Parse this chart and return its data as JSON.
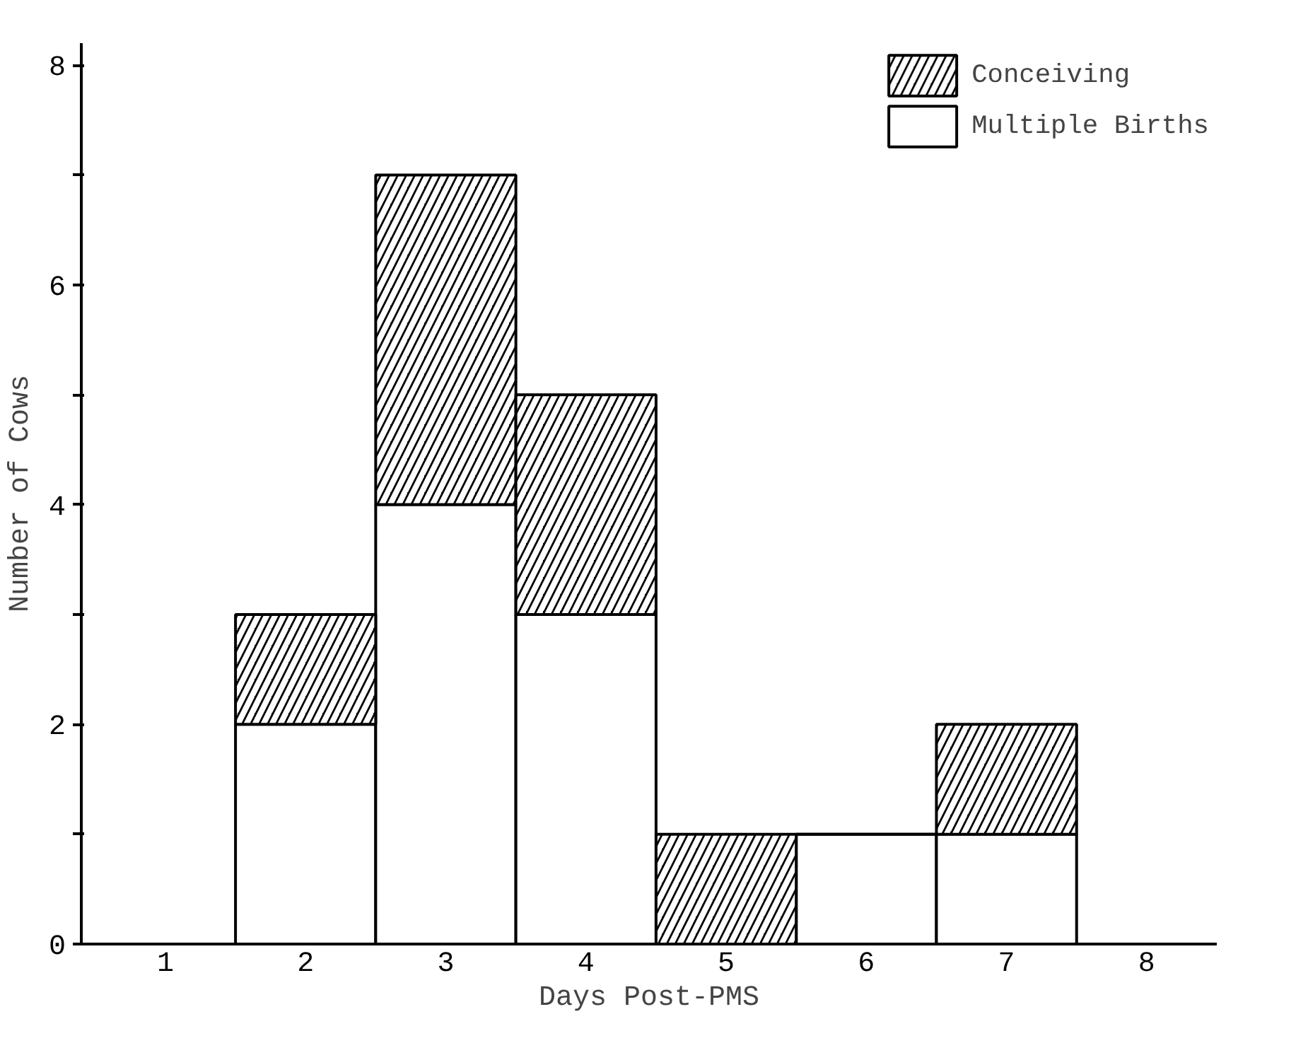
{
  "chart_data": {
    "type": "bar",
    "stacked": true,
    "xlabel": "Days Post-PMS",
    "ylabel": "Number of Cows",
    "categories": [
      "1",
      "2",
      "3",
      "4",
      "5",
      "6",
      "7",
      "8"
    ],
    "series": [
      {
        "name": "Multiple Births",
        "color": "#ffffff",
        "values": [
          0,
          2,
          4,
          3,
          0,
          1,
          1,
          0
        ]
      },
      {
        "name": "Conceiving",
        "color": "#000000",
        "values": [
          0,
          1,
          3,
          2,
          1,
          0,
          1,
          0
        ]
      }
    ],
    "ylim": [
      0,
      8.2
    ],
    "yticks": [
      0,
      {
        "value": 1,
        "label": null
      },
      2,
      {
        "value": 3,
        "label": null
      },
      4,
      {
        "value": 5,
        "label": null
      },
      6,
      {
        "value": 7,
        "label": null
      },
      8
    ],
    "grid": false,
    "legend": "top right"
  }
}
